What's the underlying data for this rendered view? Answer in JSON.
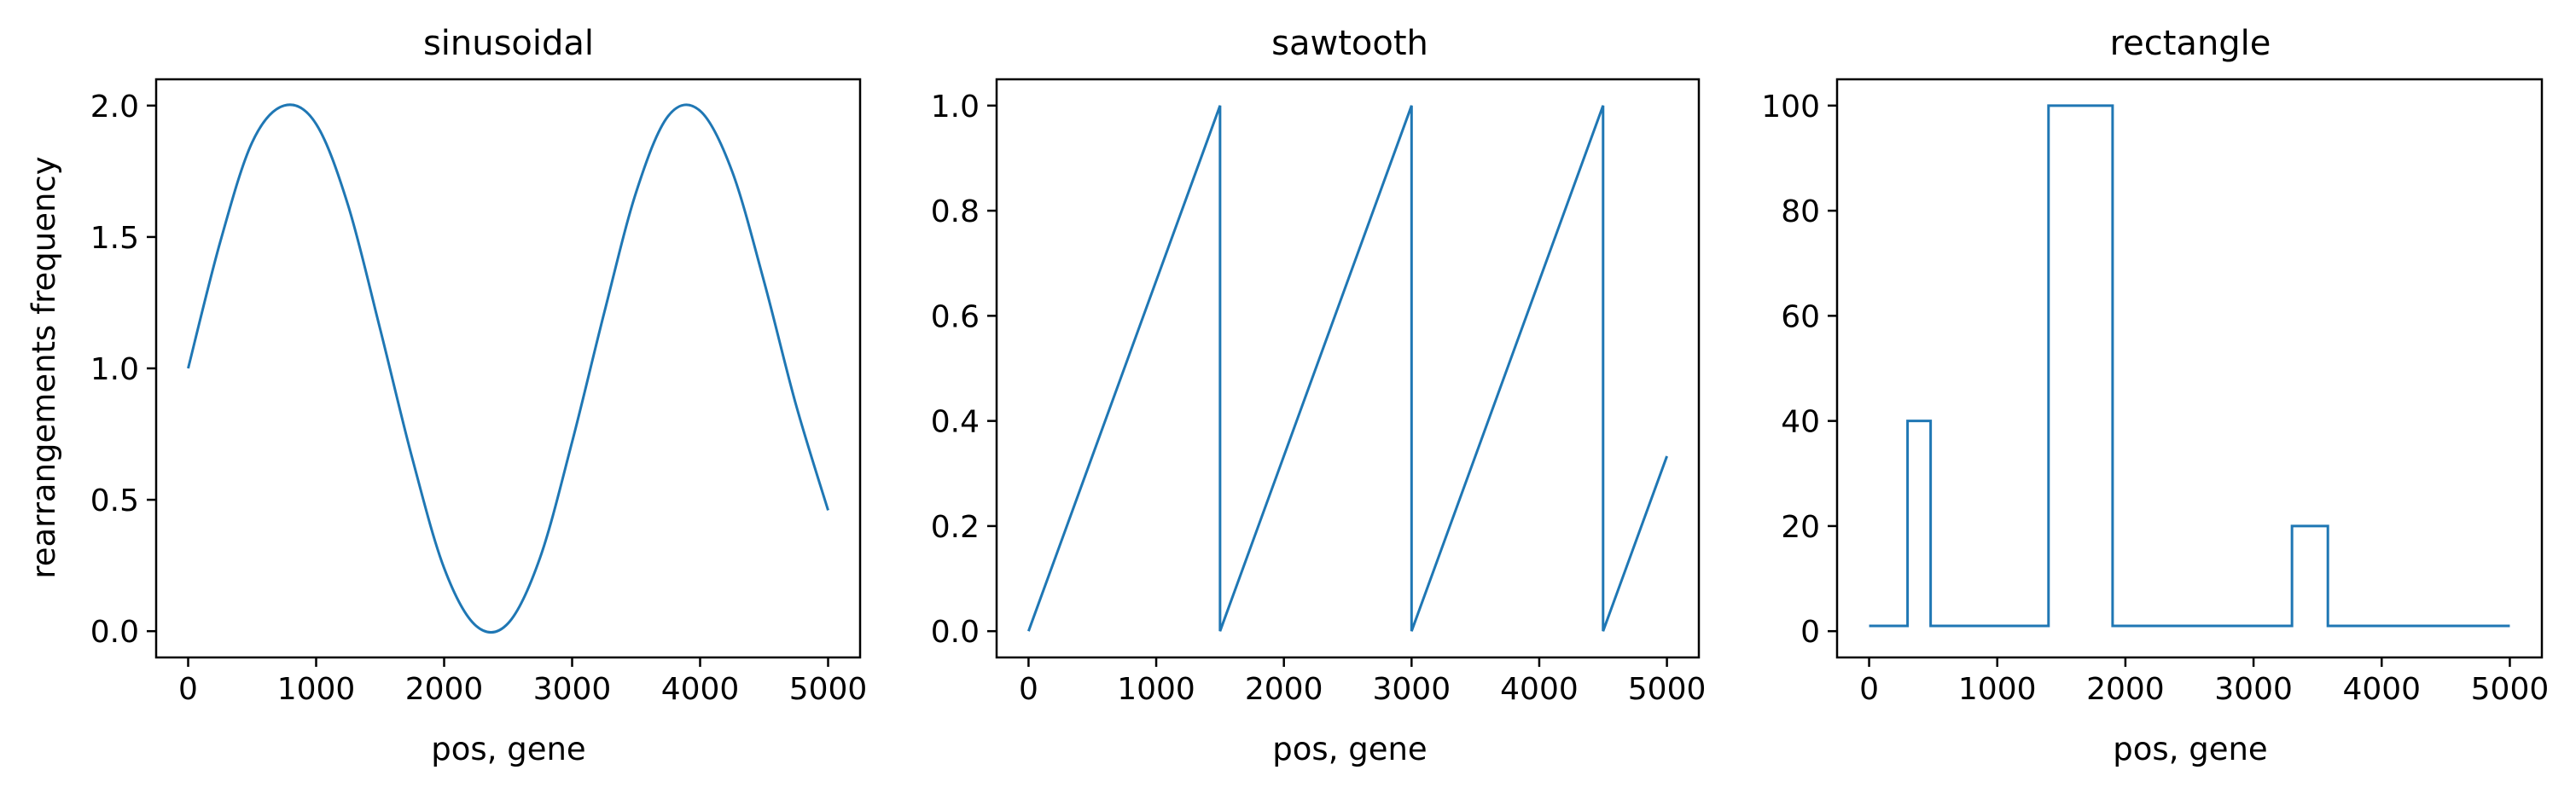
{
  "figure": {
    "shared_ylabel": "rearrangements frequency",
    "line_color": "#1f77b4"
  },
  "chart_data": [
    {
      "type": "line",
      "title": "sinusoidal",
      "xlabel": "pos, gene",
      "ylabel": "rearrangements frequency",
      "xlim": [
        -250,
        5250
      ],
      "ylim": [
        -0.1,
        2.1
      ],
      "xticks": [
        0,
        1000,
        2000,
        3000,
        4000,
        5000
      ],
      "yticks": [
        0.0,
        0.5,
        1.0,
        1.5,
        2.0
      ],
      "xtick_labels": [
        "0",
        "1000",
        "2000",
        "3000",
        "4000",
        "5000"
      ],
      "ytick_labels": [
        "0.0",
        "0.5",
        "1.0",
        "1.5",
        "2.0"
      ],
      "grid": false,
      "series": [
        {
          "x": [
            0,
            250,
            500,
            750,
            1000,
            1250,
            1500,
            1750,
            2000,
            2250,
            2500,
            2750,
            3000,
            3250,
            3500,
            3750,
            4000,
            4250,
            4500,
            4750,
            5000
          ],
          "y": [
            1.0,
            1.48,
            1.86,
            2.0,
            1.93,
            1.62,
            1.15,
            0.66,
            0.24,
            0.02,
            0.03,
            0.28,
            0.72,
            1.21,
            1.67,
            1.96,
            1.98,
            1.75,
            1.33,
            0.86,
            0.46
          ]
        }
      ]
    },
    {
      "type": "line",
      "title": "sawtooth",
      "xlabel": "pos, gene",
      "xlim": [
        -250,
        5250
      ],
      "ylim": [
        -0.05,
        1.05
      ],
      "xticks": [
        0,
        1000,
        2000,
        3000,
        4000,
        5000
      ],
      "yticks": [
        0.0,
        0.2,
        0.4,
        0.6,
        0.8,
        1.0
      ],
      "xtick_labels": [
        "0",
        "1000",
        "2000",
        "3000",
        "4000",
        "5000"
      ],
      "ytick_labels": [
        "0.0",
        "0.2",
        "0.4",
        "0.6",
        "0.8",
        "1.0"
      ],
      "grid": false,
      "series": [
        {
          "x": [
            0,
            1500,
            1500,
            3000,
            3000,
            4500,
            4500,
            5000
          ],
          "y": [
            0.0,
            1.0,
            0.0,
            1.0,
            0.0,
            1.0,
            0.0,
            0.333
          ]
        }
      ]
    },
    {
      "type": "line",
      "title": "rectangle",
      "xlabel": "pos, gene",
      "xlim": [
        -250,
        5250
      ],
      "ylim": [
        -5,
        105
      ],
      "xticks": [
        0,
        1000,
        2000,
        3000,
        4000,
        5000
      ],
      "yticks": [
        0,
        20,
        40,
        60,
        80,
        100
      ],
      "xtick_labels": [
        "0",
        "1000",
        "2000",
        "3000",
        "4000",
        "5000"
      ],
      "ytick_labels": [
        "0",
        "20",
        "40",
        "60",
        "80",
        "100"
      ],
      "grid": false,
      "series": [
        {
          "x": [
            0,
            300,
            300,
            480,
            480,
            1400,
            1400,
            1900,
            1900,
            3300,
            3300,
            3580,
            3580,
            5000
          ],
          "y": [
            1,
            1,
            40,
            40,
            1,
            1,
            100,
            100,
            1,
            1,
            20,
            20,
            1,
            1
          ]
        }
      ]
    }
  ]
}
